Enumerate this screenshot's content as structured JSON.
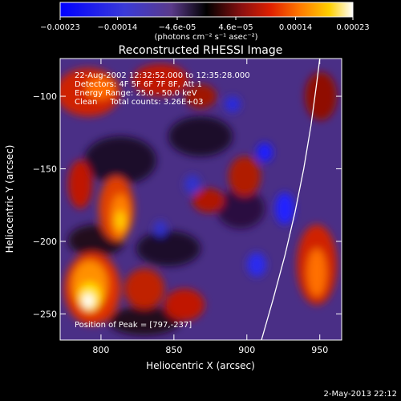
{
  "colorbar": {
    "ticks": [
      "-0.00023",
      "-0.00014",
      "-4.6e-05",
      "4.6e-05",
      "0.00014",
      "0.00023"
    ],
    "tick_values": [
      -0.00023,
      -0.00014,
      -4.6e-05,
      4.6e-05,
      0.00014,
      0.00023
    ],
    "range": [
      -0.00023,
      0.00023
    ],
    "units_label": "(photons cm⁻² s⁻¹ asec⁻²)"
  },
  "chart_data": {
    "type": "heatmap",
    "title": "Reconstructed RHESSI Image",
    "xlabel": "Heliocentric X (arcsec)",
    "ylabel": "Heliocentric Y (arcsec)",
    "xlim": [
      772,
      965
    ],
    "ylim": [
      -268,
      -74
    ],
    "xticks": [
      800,
      850,
      900,
      950
    ],
    "yticks": [
      -100,
      -150,
      -200,
      -250
    ],
    "colormap": "blue-black-red-yellow-white",
    "peak": [
      797,
      -237
    ],
    "annotations": [
      "22-Aug-2002 12:32:52.000 to 12:35:28.000",
      "Detectors: 4F 5F 6F 7F 8F, Att 1",
      "Energy Range: 25.0 - 50.0 keV",
      "Clean     Total counts: 3.26E+03"
    ],
    "peak_label": "Position of Peak = [797,-237]",
    "limb_curve": [
      [
        910,
        -268
      ],
      [
        918,
        -240
      ],
      [
        926,
        -210
      ],
      [
        933,
        -180
      ],
      [
        939,
        -150
      ],
      [
        944,
        -120
      ],
      [
        948,
        -90
      ],
      [
        950,
        -74
      ]
    ]
  },
  "footer": {
    "date": "2-May-2013 22:12"
  }
}
